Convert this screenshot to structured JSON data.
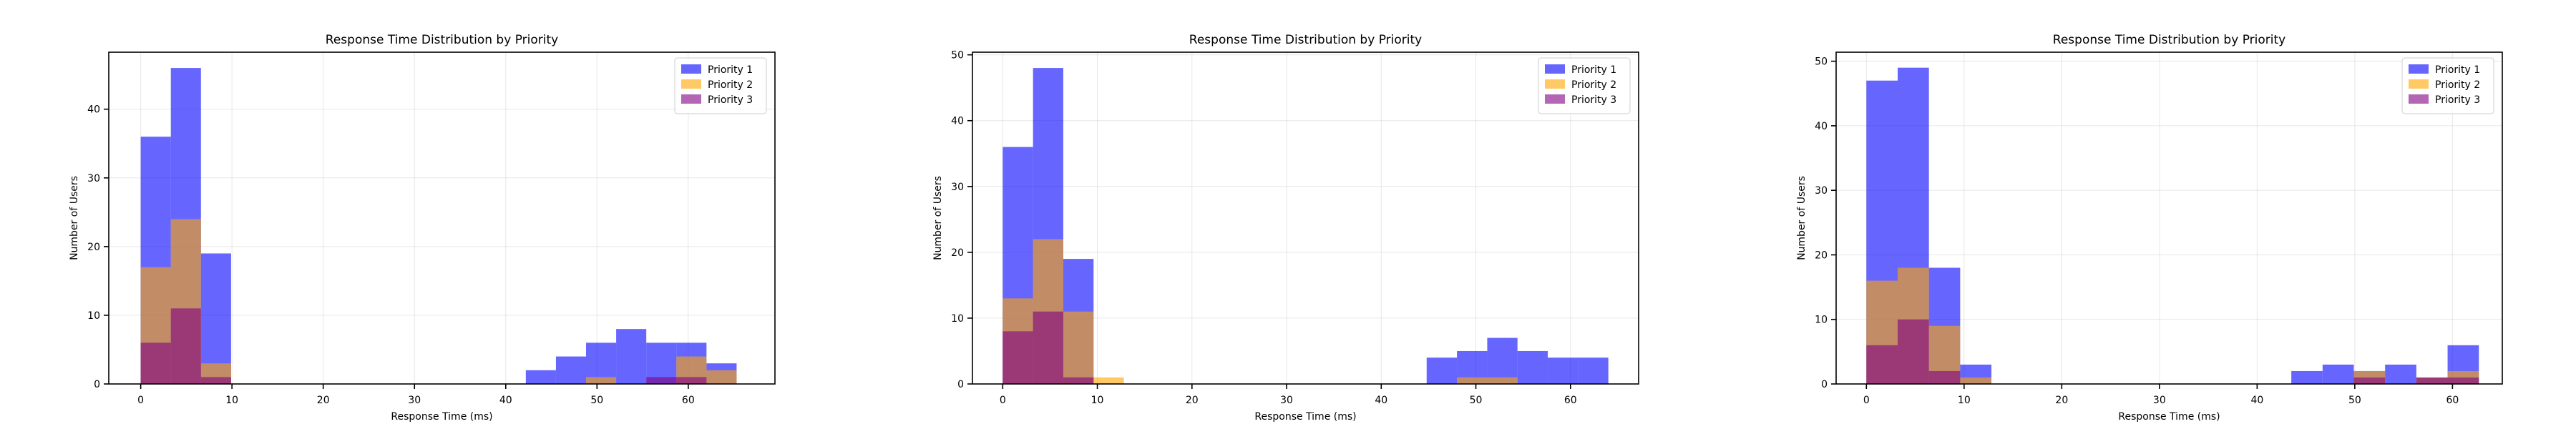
{
  "chart_data": [
    {
      "type": "histogram",
      "title": "Response Time Distribution by Priority",
      "xlabel": "Response Time (ms)",
      "ylabel": "Number of Users",
      "xlim": [
        -3.5,
        69.5
      ],
      "ylim": [
        0,
        48.3
      ],
      "xticks": [
        0,
        10,
        20,
        30,
        40,
        50,
        60
      ],
      "yticks": [
        0,
        10,
        20,
        30,
        40
      ],
      "grid": true,
      "legend": "top-right",
      "series": [
        {
          "name": "Priority 1",
          "color": "#0000ff",
          "bins": [
            [
              0,
              3.3,
              36
            ],
            [
              3.3,
              6.6,
              46
            ],
            [
              6.6,
              9.9,
              19
            ],
            [
              42.2,
              45.5,
              2
            ],
            [
              45.5,
              48.8,
              4
            ],
            [
              48.8,
              52.1,
              6
            ],
            [
              52.1,
              55.4,
              8
            ],
            [
              55.4,
              58.7,
              6
            ],
            [
              58.7,
              62,
              6
            ],
            [
              62,
              65.3,
              3
            ]
          ]
        },
        {
          "name": "Priority 2",
          "color": "#ffa500",
          "bins": [
            [
              0,
              3.3,
              17
            ],
            [
              3.3,
              6.6,
              24
            ],
            [
              6.6,
              9.9,
              3
            ],
            [
              48.8,
              52.1,
              1
            ],
            [
              58.7,
              62,
              4
            ],
            [
              62,
              65.3,
              2
            ]
          ]
        },
        {
          "name": "Priority 3",
          "color": "#800080",
          "bins": [
            [
              0,
              3.3,
              6
            ],
            [
              3.3,
              6.6,
              11
            ],
            [
              6.6,
              9.9,
              1
            ],
            [
              55.4,
              58.7,
              1
            ],
            [
              58.7,
              62,
              1
            ]
          ]
        }
      ]
    },
    {
      "type": "histogram",
      "title": "Response Time Distribution by Priority",
      "xlabel": "Response Time (ms)",
      "ylabel": "Number of Users",
      "xlim": [
        -3.2,
        67.2
      ],
      "ylim": [
        0,
        50.4
      ],
      "xticks": [
        0,
        10,
        20,
        30,
        40,
        50,
        60
      ],
      "yticks": [
        0,
        10,
        20,
        30,
        40,
        50
      ],
      "grid": true,
      "legend": "top-right",
      "series": [
        {
          "name": "Priority 1",
          "color": "#0000ff",
          "bins": [
            [
              0,
              3.2,
              36
            ],
            [
              3.2,
              6.4,
              48
            ],
            [
              6.4,
              9.6,
              19
            ],
            [
              44.8,
              48,
              4
            ],
            [
              48,
              51.2,
              5
            ],
            [
              51.2,
              54.4,
              7
            ],
            [
              54.4,
              57.6,
              5
            ],
            [
              57.6,
              60.8,
              4
            ],
            [
              60.8,
              64,
              4
            ]
          ]
        },
        {
          "name": "Priority 2",
          "color": "#ffa500",
          "bins": [
            [
              0,
              3.2,
              13
            ],
            [
              3.2,
              6.4,
              22
            ],
            [
              6.4,
              9.6,
              11
            ],
            [
              9.6,
              12.8,
              1
            ],
            [
              48,
              51.2,
              1
            ],
            [
              51.2,
              54.4,
              1
            ]
          ]
        },
        {
          "name": "Priority 3",
          "color": "#800080",
          "bins": [
            [
              0,
              3.2,
              8
            ],
            [
              3.2,
              6.4,
              11
            ],
            [
              6.4,
              9.6,
              1
            ]
          ]
        }
      ]
    },
    {
      "type": "histogram",
      "title": "Response Time Distribution by Priority",
      "xlabel": "Response Time (ms)",
      "ylabel": "Number of Users",
      "xlim": [
        -3.1,
        65.1
      ],
      "ylim": [
        0,
        51.4
      ],
      "xticks": [
        0,
        10,
        20,
        30,
        40,
        50,
        60
      ],
      "yticks": [
        0,
        10,
        20,
        30,
        40,
        50
      ],
      "grid": true,
      "legend": "top-right",
      "series": [
        {
          "name": "Priority 1",
          "color": "#0000ff",
          "bins": [
            [
              0,
              3.2,
              47
            ],
            [
              3.2,
              6.4,
              49
            ],
            [
              6.4,
              9.6,
              18
            ],
            [
              9.6,
              12.8,
              3
            ],
            [
              43.5,
              46.7,
              2
            ],
            [
              46.7,
              49.9,
              3
            ],
            [
              49.9,
              53.1,
              2
            ],
            [
              53.1,
              56.3,
              3
            ],
            [
              56.3,
              59.5,
              1
            ],
            [
              59.5,
              62.7,
              6
            ]
          ]
        },
        {
          "name": "Priority 2",
          "color": "#ffa500",
          "bins": [
            [
              0,
              3.2,
              16
            ],
            [
              3.2,
              6.4,
              18
            ],
            [
              6.4,
              9.6,
              9
            ],
            [
              9.6,
              12.8,
              1
            ],
            [
              49.9,
              53.1,
              2
            ],
            [
              56.3,
              59.5,
              1
            ],
            [
              59.5,
              62.7,
              2
            ]
          ]
        },
        {
          "name": "Priority 3",
          "color": "#800080",
          "bins": [
            [
              0,
              3.2,
              6
            ],
            [
              3.2,
              6.4,
              10
            ],
            [
              6.4,
              9.6,
              2
            ],
            [
              49.9,
              53.1,
              1
            ],
            [
              56.3,
              59.5,
              1
            ],
            [
              59.5,
              62.7,
              1
            ]
          ]
        }
      ]
    }
  ]
}
